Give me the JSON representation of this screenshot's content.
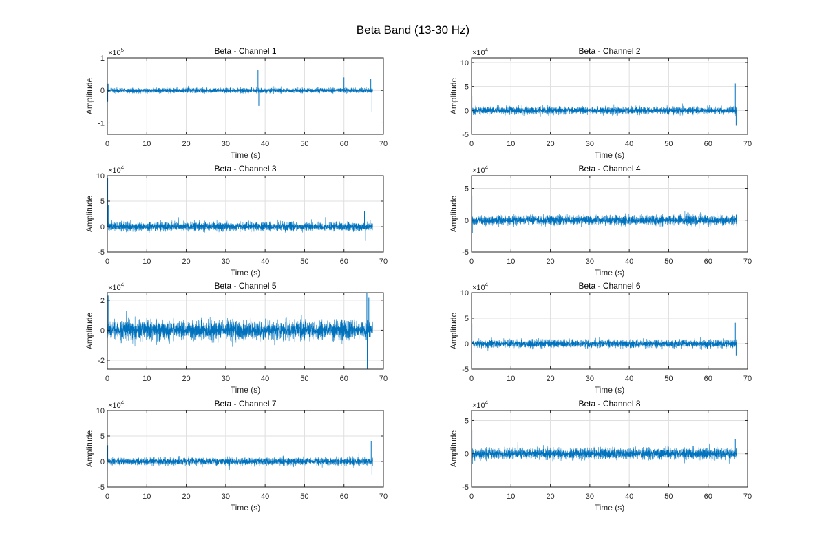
{
  "figure": {
    "title": "Beta Band (13-30 Hz)"
  },
  "colors": {
    "signal": "#0072BD",
    "axis": "#262626",
    "grid": "#dfdfdf"
  },
  "chart_data": [
    {
      "type": "line",
      "title": "Beta - Channel 1",
      "xlabel": "Time (s)",
      "ylabel": "Amplitude",
      "xlim": [
        0,
        70
      ],
      "xticks": [
        0,
        10,
        20,
        30,
        40,
        50,
        60,
        70
      ],
      "ylim": [
        -1.35,
        1.0
      ],
      "yticks": [
        -1,
        0,
        1
      ],
      "y_exponent": "5",
      "grid": true,
      "series": [
        {
          "duration_s": 67.3,
          "noise_envelope": 0.12,
          "spikes": [
            {
              "x": 0.1,
              "y": -0.35
            },
            {
              "x": 0.2,
              "y": 0.2
            },
            {
              "x": 38.2,
              "y": 0.62
            },
            {
              "x": 38.4,
              "y": -0.48
            },
            {
              "x": 60.0,
              "y": 0.4
            },
            {
              "x": 66.8,
              "y": 0.35
            },
            {
              "x": 67.1,
              "y": -0.65
            }
          ]
        }
      ]
    },
    {
      "type": "line",
      "title": "Beta - Channel 2",
      "xlabel": "Time (s)",
      "ylabel": "Amplitude",
      "xlim": [
        0,
        70
      ],
      "xticks": [
        0,
        10,
        20,
        30,
        40,
        50,
        60,
        70
      ],
      "ylim": [
        -5,
        11
      ],
      "yticks": [
        -5,
        0,
        5,
        10
      ],
      "y_exponent": "4",
      "grid": true,
      "series": [
        {
          "duration_s": 67.3,
          "noise_envelope": 1.3,
          "spikes": [
            {
              "x": 0.1,
              "y": 3.0
            },
            {
              "x": 66.9,
              "y": 5.6
            },
            {
              "x": 67.1,
              "y": -3.2
            }
          ]
        }
      ]
    },
    {
      "type": "line",
      "title": "Beta - Channel 3",
      "xlabel": "Time (s)",
      "ylabel": "Amplitude",
      "xlim": [
        0,
        70
      ],
      "xticks": [
        0,
        10,
        20,
        30,
        40,
        50,
        60,
        70
      ],
      "ylim": [
        -5,
        10
      ],
      "yticks": [
        -5,
        0,
        5,
        10
      ],
      "y_exponent": "4",
      "grid": true,
      "series": [
        {
          "duration_s": 67.3,
          "noise_envelope": 1.4,
          "spikes": [
            {
              "x": 0.1,
              "y": 9.5
            },
            {
              "x": 0.3,
              "y": 4.2
            },
            {
              "x": 65.2,
              "y": 3.0
            },
            {
              "x": 65.5,
              "y": -2.8
            }
          ]
        }
      ]
    },
    {
      "type": "line",
      "title": "Beta - Channel 4",
      "xlabel": "Time (s)",
      "ylabel": "Amplitude",
      "xlim": [
        0,
        70
      ],
      "xticks": [
        0,
        10,
        20,
        30,
        40,
        50,
        60,
        70
      ],
      "ylim": [
        -5,
        7
      ],
      "yticks": [
        -5,
        0,
        5
      ],
      "y_exponent": "4",
      "grid": true,
      "series": [
        {
          "duration_s": 67.3,
          "noise_envelope": 1.3,
          "spikes": [
            {
              "x": 0.1,
              "y": 3.8
            },
            {
              "x": 0.2,
              "y": -2.0
            }
          ]
        }
      ]
    },
    {
      "type": "line",
      "title": "Beta - Channel 5",
      "xlabel": "Time (s)",
      "ylabel": "Amplitude",
      "xlim": [
        0,
        70
      ],
      "xticks": [
        0,
        10,
        20,
        30,
        40,
        50,
        60,
        70
      ],
      "ylim": [
        -2.6,
        2.5
      ],
      "yticks": [
        -2,
        0,
        2
      ],
      "y_exponent": "4",
      "grid": true,
      "series": [
        {
          "duration_s": 67.3,
          "noise_envelope": 1.05,
          "spikes": [
            {
              "x": 0.2,
              "y": 2.3
            },
            {
              "x": 65.8,
              "y": 2.5
            },
            {
              "x": 65.9,
              "y": -2.6
            },
            {
              "x": 66.3,
              "y": 2.2
            }
          ]
        }
      ]
    },
    {
      "type": "line",
      "title": "Beta - Channel 6",
      "xlabel": "Time (s)",
      "ylabel": "Amplitude",
      "xlim": [
        0,
        70
      ],
      "xticks": [
        0,
        10,
        20,
        30,
        40,
        50,
        60,
        70
      ],
      "ylim": [
        -5,
        10
      ],
      "yticks": [
        -5,
        0,
        5,
        10
      ],
      "y_exponent": "4",
      "grid": true,
      "series": [
        {
          "duration_s": 67.3,
          "noise_envelope": 1.3,
          "spikes": [
            {
              "x": 0.1,
              "y": 4.0
            },
            {
              "x": 66.9,
              "y": 4.1
            },
            {
              "x": 67.1,
              "y": -2.4
            }
          ]
        }
      ]
    },
    {
      "type": "line",
      "title": "Beta - Channel 7",
      "xlabel": "Time (s)",
      "ylabel": "Amplitude",
      "xlim": [
        0,
        70
      ],
      "xticks": [
        0,
        10,
        20,
        30,
        40,
        50,
        60,
        70
      ],
      "ylim": [
        -5,
        10
      ],
      "yticks": [
        -5,
        0,
        5,
        10
      ],
      "y_exponent": "4",
      "grid": true,
      "series": [
        {
          "duration_s": 67.3,
          "noise_envelope": 1.2,
          "spikes": [
            {
              "x": 0.1,
              "y": 3.2
            },
            {
              "x": 66.9,
              "y": 4.0
            },
            {
              "x": 67.1,
              "y": -2.5
            }
          ]
        }
      ]
    },
    {
      "type": "line",
      "title": "Beta - Channel 8",
      "xlabel": "Time (s)",
      "ylabel": "Amplitude",
      "xlim": [
        0,
        70
      ],
      "xticks": [
        0,
        10,
        20,
        30,
        40,
        50,
        60,
        70
      ],
      "ylim": [
        -5,
        6.5
      ],
      "yticks": [
        -5,
        0,
        5
      ],
      "y_exponent": "4",
      "grid": true,
      "series": [
        {
          "duration_s": 67.3,
          "noise_envelope": 1.4,
          "spikes": [
            {
              "x": 0.1,
              "y": 3.5
            },
            {
              "x": 0.2,
              "y": -1.5
            },
            {
              "x": 66.9,
              "y": 2.2
            }
          ]
        }
      ]
    }
  ]
}
